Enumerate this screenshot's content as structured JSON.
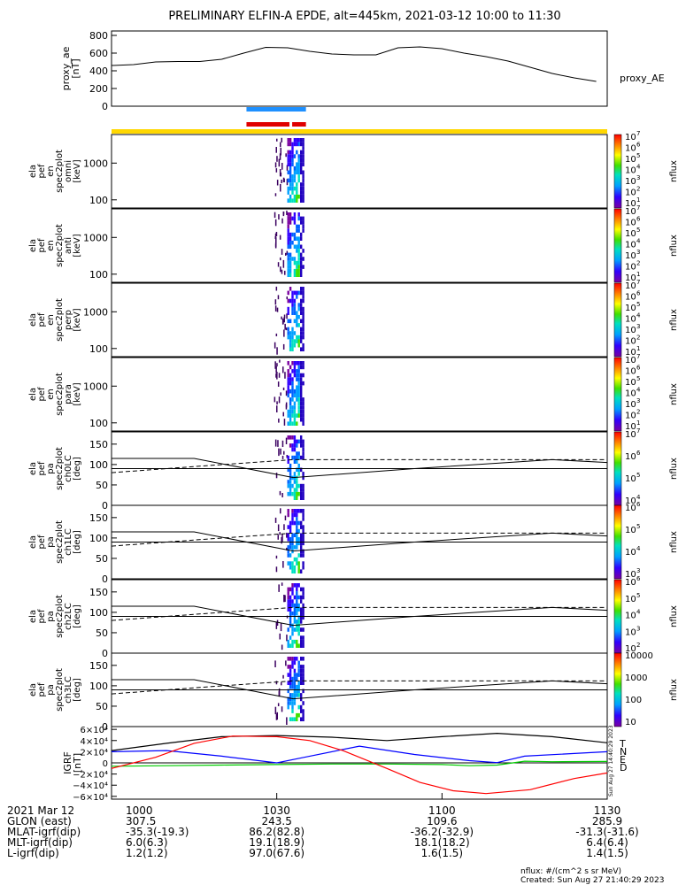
{
  "title": "PRELIMINARY ELFIN-A EPDE, alt=445km, 2021-03-12 10:00 to 11:30",
  "footer": {
    "units_note": "nflux: #/(cm^2 s sr MeV)",
    "created": "Created: Sun Aug 27 21:40:29 2023",
    "side_stamp": "Sun Aug 27 14:40:29 2023"
  },
  "colors": {
    "bar_blue": "#1e90ff",
    "bar_red": "#e00000",
    "bar_yellow": "#ffd700",
    "grf_t": "#000000",
    "grf_n": "#0000ff",
    "grf_e": "#00cc00",
    "grf_d": "#ff0000"
  },
  "chart_data": [
    {
      "type": "line",
      "panel": "proxy_ae",
      "ylabel": [
        "proxy_ae",
        "[nT]"
      ],
      "legend": "proxy_AE",
      "ylim": [
        0,
        850
      ],
      "yticks": [
        0,
        200,
        400,
        600,
        800
      ],
      "x": [
        0,
        4,
        8,
        12,
        16,
        20,
        24,
        28,
        32,
        36,
        40,
        44,
        48,
        52,
        56,
        60,
        64,
        68,
        72,
        76,
        80,
        84,
        88
      ],
      "y": [
        460,
        470,
        500,
        505,
        505,
        530,
        600,
        665,
        660,
        620,
        590,
        580,
        580,
        660,
        670,
        650,
        600,
        560,
        510,
        440,
        370,
        320,
        280
      ]
    },
    {
      "type": "heatmap",
      "panel": "spectrograms",
      "panels": [
        {
          "ylabel": [
            "ela",
            "pef",
            "en",
            "spec2plot",
            "omni",
            "[keV]"
          ],
          "yticks": [
            100,
            1000
          ],
          "cbar_ticks": [
            "10",
            "10",
            "10",
            "10",
            "10",
            "10",
            "10"
          ],
          "cbar_exp": [
            "7",
            "6",
            "5",
            "4",
            "3",
            "2",
            "1"
          ],
          "cbar_label": "nflux"
        },
        {
          "ylabel": [
            "ela",
            "pef",
            "en",
            "spec2plot",
            "anti",
            "[keV]"
          ],
          "yticks": [
            100,
            1000
          ],
          "cbar_ticks": [
            "10",
            "10",
            "10",
            "10",
            "10",
            "10",
            "10"
          ],
          "cbar_exp": [
            "7",
            "6",
            "5",
            "4",
            "3",
            "2",
            "1"
          ],
          "cbar_label": "nflux"
        },
        {
          "ylabel": [
            "ela",
            "pef",
            "en",
            "spec2plot",
            "perp",
            "[keV]"
          ],
          "yticks": [
            100,
            1000
          ],
          "cbar_ticks": [
            "10",
            "10",
            "10",
            "10",
            "10",
            "10",
            "10"
          ],
          "cbar_exp": [
            "7",
            "6",
            "5",
            "4",
            "3",
            "2",
            "1"
          ],
          "cbar_label": "nflux"
        },
        {
          "ylabel": [
            "ela",
            "pef",
            "en",
            "spec2plot",
            "para",
            "[keV]"
          ],
          "yticks": [
            100,
            1000
          ],
          "cbar_ticks": [
            "10",
            "10",
            "10",
            "10",
            "10",
            "10",
            "10"
          ],
          "cbar_exp": [
            "7",
            "6",
            "5",
            "4",
            "3",
            "2",
            "1"
          ],
          "cbar_label": "nflux"
        },
        {
          "ylabel": [
            "ela",
            "pef",
            "pa",
            "spec2plot",
            "ch0LC",
            "[deg]"
          ],
          "yticks": [
            0,
            50,
            100,
            150
          ],
          "cbar_ticks": [
            "10",
            "10",
            "10",
            "10"
          ],
          "cbar_exp": [
            "7",
            "6",
            "5",
            "4"
          ],
          "cbar_label": "nflux"
        },
        {
          "ylabel": [
            "ela",
            "pef",
            "pa",
            "spec2plot",
            "ch1LC",
            "[deg]"
          ],
          "yticks": [
            0,
            50,
            100,
            150
          ],
          "cbar_ticks": [
            "10",
            "10",
            "10",
            "10"
          ],
          "cbar_exp": [
            "6",
            "5",
            "4",
            "3"
          ],
          "cbar_label": "nflux"
        },
        {
          "ylabel": [
            "ela",
            "pef",
            "pa",
            "spec2plot",
            "ch2LC",
            "[deg]"
          ],
          "yticks": [
            0,
            50,
            100,
            150
          ],
          "cbar_ticks": [
            "10",
            "10",
            "10",
            "10",
            "10"
          ],
          "cbar_exp": [
            "6",
            "5",
            "4",
            "3",
            "2"
          ],
          "cbar_label": "nflux"
        },
        {
          "ylabel": [
            "ela",
            "pef",
            "pa",
            "spec2plot",
            "ch3LC",
            "[deg]"
          ],
          "yticks": [
            0,
            50,
            100,
            150
          ],
          "cbar_ticks": [
            "10000",
            "1000",
            "100",
            "10"
          ],
          "cbar_exp": [
            "",
            "",
            "",
            ""
          ],
          "cbar_label": "nflux"
        }
      ]
    },
    {
      "type": "line",
      "panel": "igrf",
      "ylabel": [
        "IGRF",
        "[nT]"
      ],
      "ylim": [
        -65000,
        65000
      ],
      "ytick_labels": [
        "6×10⁴",
        "4×10⁴",
        "2×10⁴",
        "0",
        "−2×10⁴",
        "−4×10⁴",
        "−6×10⁴"
      ],
      "ytick_values": [
        60000,
        40000,
        20000,
        0,
        -20000,
        -40000,
        -60000
      ],
      "series": [
        {
          "name": "T",
          "x": [
            0,
            10,
            20,
            30,
            40,
            50,
            60,
            70,
            80,
            90
          ],
          "y": [
            22000,
            35000,
            47000,
            49000,
            46000,
            40000,
            47000,
            53000,
            47000,
            36000
          ]
        },
        {
          "name": "N",
          "x": [
            0,
            10,
            20,
            30,
            35,
            45,
            55,
            65,
            70,
            75,
            90
          ],
          "y": [
            20000,
            22000,
            12000,
            0,
            10000,
            30000,
            15000,
            4000,
            500,
            12000,
            20000
          ]
        },
        {
          "name": "E",
          "x": [
            0,
            10,
            20,
            30,
            40,
            50,
            60,
            65,
            70,
            75,
            80,
            90
          ],
          "y": [
            -6000,
            -5000,
            -4000,
            -3000,
            -2000,
            -2000,
            -3000,
            -5000,
            -4000,
            3000,
            2000,
            2500
          ]
        },
        {
          "name": "D",
          "x": [
            0,
            8,
            15,
            22,
            30,
            36,
            42,
            50,
            56,
            62,
            68,
            76,
            84,
            90
          ],
          "y": [
            -10000,
            10000,
            35000,
            48000,
            47000,
            40000,
            22000,
            -10000,
            -35000,
            -50000,
            -55000,
            -48000,
            -28000,
            -18000
          ]
        }
      ]
    }
  ],
  "xaxis": {
    "tick_labels": [
      "1000",
      "1030",
      "1100",
      "1130"
    ],
    "tick_minutes": [
      0,
      30,
      60,
      90
    ]
  },
  "ephemeris": [
    {
      "label": "2021 Mar 12",
      "values": [
        "1000",
        "1030",
        "1100",
        "1130"
      ]
    },
    {
      "label": "GLON (east)",
      "values": [
        "307.5",
        "243.5",
        "109.6",
        "285.9"
      ]
    },
    {
      "label": "MLAT-igrf(dip)",
      "values": [
        "-35.3(-19.3)",
        "86.2(82.8)",
        "-36.2(-32.9)",
        "-31.3(-31.6)"
      ]
    },
    {
      "label": "MLT-igrf(dip)",
      "values": [
        "6.0(6.3)",
        "19.1(18.9)",
        "18.1(18.2)",
        "6.4(6.4)"
      ]
    },
    {
      "label": "L-igrf(dip)",
      "values": [
        "1.2(1.2)",
        "97.0(67.6)",
        "1.6(1.5)",
        "1.4(1.5)"
      ]
    }
  ]
}
